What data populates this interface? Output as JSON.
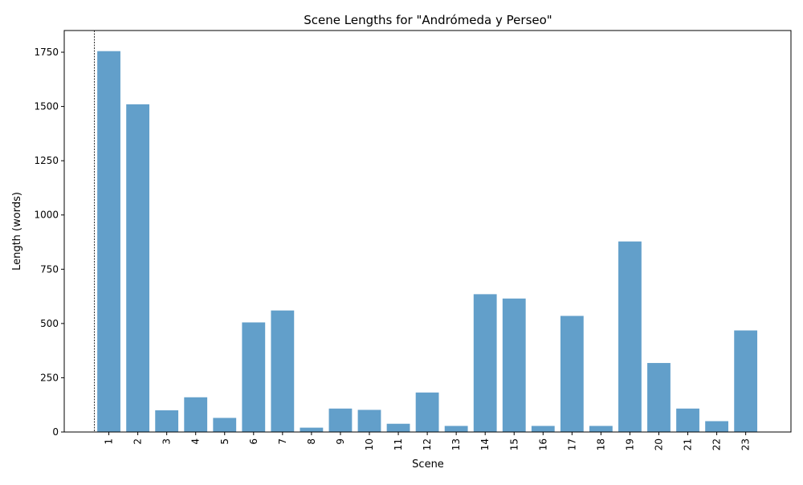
{
  "chart_data": {
    "type": "bar",
    "title": "Scene Lengths for \"Andrómeda y Perseo\"",
    "xlabel": "Scene",
    "ylabel": "Length (words)",
    "categories": [
      "1",
      "2",
      "3",
      "4",
      "5",
      "6",
      "7",
      "8",
      "9",
      "10",
      "11",
      "12",
      "13",
      "14",
      "15",
      "16",
      "17",
      "18",
      "19",
      "20",
      "21",
      "22",
      "23"
    ],
    "values": [
      1755,
      1510,
      100,
      160,
      65,
      505,
      560,
      20,
      108,
      102,
      38,
      182,
      28,
      635,
      615,
      28,
      535,
      28,
      878,
      318,
      108,
      50,
      468
    ],
    "ylim": [
      0,
      1850
    ],
    "yticks": [
      0,
      250,
      500,
      750,
      1000,
      1250,
      1500,
      1750
    ],
    "bar_color": "#629fca",
    "marker_line": {
      "style": "dashed",
      "color": "#000000"
    },
    "grid": false,
    "legend": "none"
  }
}
